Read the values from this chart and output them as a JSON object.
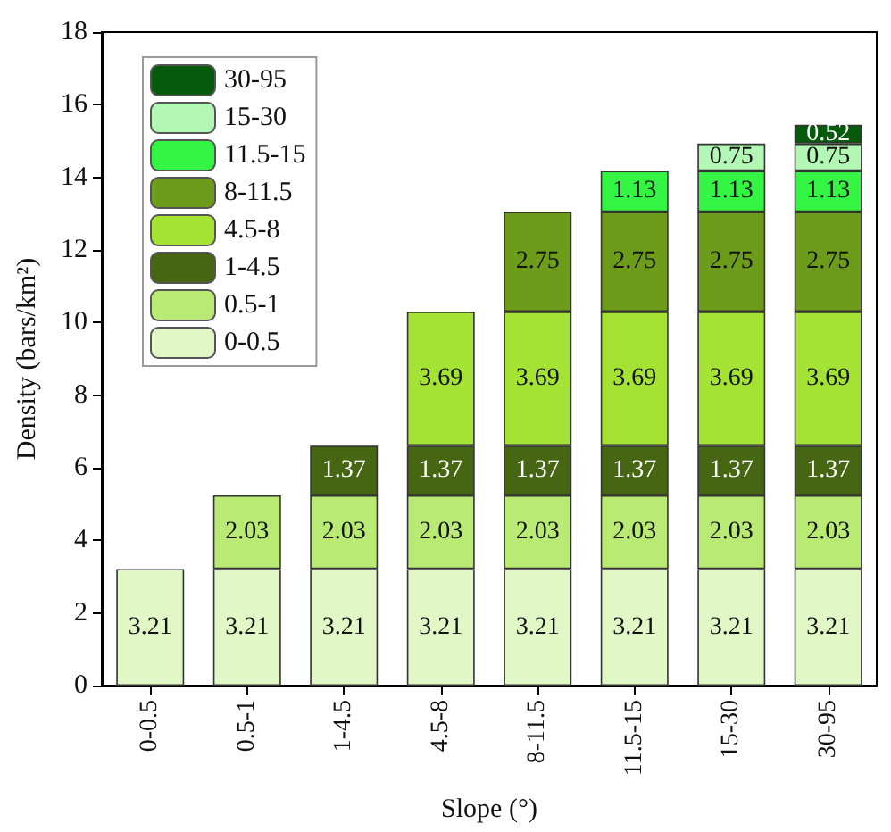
{
  "chart_data": {
    "type": "bar",
    "stacked": true,
    "xlabel": "Slope (°)",
    "ylabel": "Density (bars/km²)",
    "categories": [
      "0-0.5",
      "0.5-1",
      "1-4.5",
      "4.5-8",
      "8-11.5",
      "11.5-15",
      "15-30",
      "30-95"
    ],
    "ylim": [
      0,
      18
    ],
    "yticks": [
      0,
      2,
      4,
      6,
      8,
      10,
      12,
      14,
      16,
      18
    ],
    "grid": false,
    "legend": "top left",
    "data_labels": true,
    "series": [
      {
        "name": "0-0.5",
        "color": "#e1f8c6",
        "values": [
          3.21,
          3.21,
          3.21,
          3.21,
          3.21,
          3.21,
          3.21,
          3.21
        ]
      },
      {
        "name": "0.5-1",
        "color": "#b9ea74",
        "values": [
          null,
          2.03,
          2.03,
          2.03,
          2.03,
          2.03,
          2.03,
          2.03
        ]
      },
      {
        "name": "1-4.5",
        "color": "#466614",
        "values": [
          null,
          null,
          1.37,
          1.37,
          1.37,
          1.37,
          1.37,
          1.37
        ]
      },
      {
        "name": "4.5-8",
        "color": "#a4e234",
        "values": [
          null,
          null,
          null,
          3.69,
          3.69,
          3.69,
          3.69,
          3.69
        ]
      },
      {
        "name": "8-11.5",
        "color": "#6c9c1a",
        "values": [
          null,
          null,
          null,
          null,
          2.75,
          2.75,
          2.75,
          2.75
        ]
      },
      {
        "name": "11.5-15",
        "color": "#34f444",
        "values": [
          null,
          null,
          null,
          null,
          null,
          1.13,
          1.13,
          1.13
        ]
      },
      {
        "name": "15-30",
        "color": "#b2f8b4",
        "values": [
          null,
          null,
          null,
          null,
          null,
          null,
          0.75,
          0.75
        ]
      },
      {
        "name": "30-95",
        "color": "#065a0c",
        "values": [
          null,
          null,
          null,
          null,
          null,
          null,
          null,
          0.52
        ]
      }
    ]
  }
}
